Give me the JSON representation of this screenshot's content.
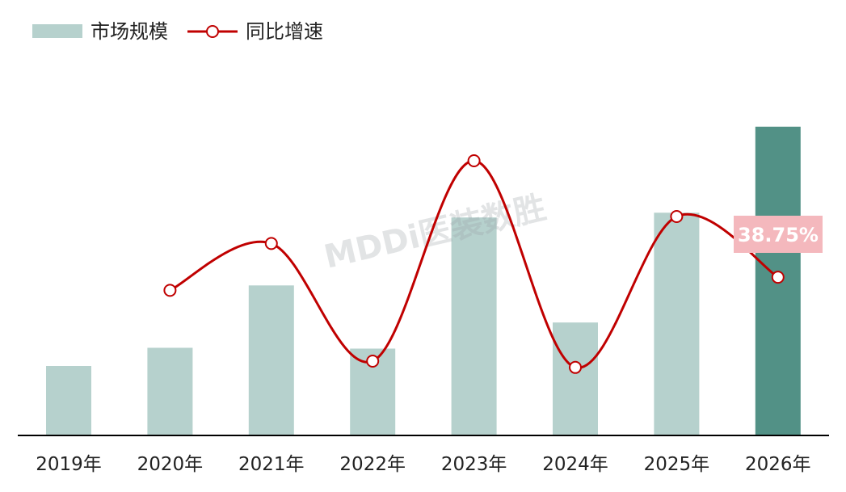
{
  "chart_data": {
    "type": "bar",
    "categories": [
      "2019年",
      "2020年",
      "2021年",
      "2022年",
      "2023年",
      "2024年",
      "2025年",
      "2026年"
    ],
    "series": [
      {
        "name": "市场规模",
        "kind": "bar",
        "values": [
          88,
          111,
          190,
          110,
          276,
          143,
          282,
          391
        ]
      },
      {
        "name": "同比增速",
        "kind": "line",
        "values": [
          null,
          26.1,
          71.2,
          -42.1,
          150.9,
          -48.2,
          97.2,
          38.75
        ]
      }
    ],
    "highlight": {
      "category": "2026年",
      "label": "38.75%"
    },
    "ylim_bar": [
      0,
      400
    ],
    "ylim_line": [
      -60,
      175
    ],
    "grid": false,
    "legend_position": "top-left",
    "watermark": "MDDi医装数胜",
    "colors": {
      "bar": "#b6d1cd",
      "bar_highlight": "#529186",
      "line": "#c00000",
      "marker_fill": "#ffffff",
      "callout_bg": "#f4b8bd",
      "axis": "#000000"
    }
  }
}
